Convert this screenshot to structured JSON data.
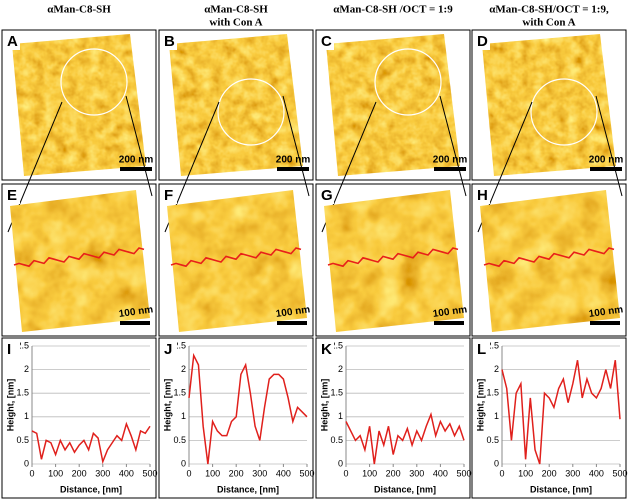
{
  "columns": [
    {
      "title": [
        "αMan-C8-SH"
      ],
      "top_label": "A",
      "top_scale": "200 nm",
      "zoom_label": "E",
      "zoom_scale": "100 nm"
    },
    {
      "title": [
        "αMan-C8-SH",
        "with Con A"
      ],
      "top_label": "B",
      "top_scale": "200 nm",
      "zoom_label": "F",
      "zoom_scale": "100 nm"
    },
    {
      "title": [
        "αMan-C8-SH /OCT = 1:9"
      ],
      "top_label": "C",
      "top_scale": "200 nm",
      "zoom_label": "G",
      "zoom_scale": "100 nm"
    },
    {
      "title": [
        "αMan-C8-SH/OCT = 1:9,",
        "with Con A"
      ],
      "top_label": "D",
      "top_scale": "200 nm",
      "zoom_label": "H",
      "zoom_scale": "100 nm"
    }
  ],
  "chart_data": [
    {
      "type": "line",
      "label": "I",
      "y_label": "Height, [nm]",
      "x_label": "Distance, [nm]",
      "color": "#e0201c",
      "xlim": [
        0,
        500
      ],
      "xticks": [
        0,
        100,
        200,
        300,
        400,
        500
      ],
      "ylim": [
        0,
        2.5
      ],
      "yticks": [
        0,
        0.5,
        1,
        1.5,
        2,
        2.5
      ],
      "grid": true,
      "x": [
        0,
        20,
        40,
        60,
        80,
        100,
        120,
        140,
        160,
        180,
        200,
        220,
        240,
        260,
        280,
        300,
        320,
        340,
        360,
        380,
        400,
        420,
        440,
        460,
        480,
        500
      ],
      "values": [
        0.7,
        0.65,
        0.1,
        0.5,
        0.45,
        0.2,
        0.5,
        0.3,
        0.45,
        0.25,
        0.4,
        0.5,
        0.3,
        0.65,
        0.55,
        0.05,
        0.3,
        0.45,
        0.6,
        0.5,
        0.85,
        0.6,
        0.3,
        0.7,
        0.65,
        0.8
      ]
    },
    {
      "type": "line",
      "label": "J",
      "y_label": "Height, [nm]",
      "x_label": "Distance, [nm]",
      "color": "#e0201c",
      "xlim": [
        0,
        500
      ],
      "xticks": [
        0,
        100,
        200,
        300,
        400,
        500
      ],
      "ylim": [
        0,
        2.5
      ],
      "yticks": [
        0,
        0.5,
        1,
        1.5,
        2,
        2.5
      ],
      "grid": true,
      "x": [
        0,
        20,
        40,
        60,
        80,
        100,
        120,
        140,
        160,
        180,
        200,
        220,
        240,
        260,
        280,
        300,
        320,
        340,
        360,
        380,
        400,
        420,
        440,
        460,
        480,
        500
      ],
      "values": [
        1.4,
        2.3,
        2.1,
        0.8,
        0.0,
        0.9,
        0.7,
        0.6,
        0.6,
        0.9,
        1.0,
        1.9,
        2.1,
        1.5,
        0.8,
        0.5,
        1.2,
        1.8,
        1.9,
        1.9,
        1.8,
        1.4,
        0.9,
        1.2,
        1.1,
        1.0
      ]
    },
    {
      "type": "line",
      "label": "K",
      "y_label": "Height, [nm]",
      "x_label": "Distance, [nm]",
      "color": "#e0201c",
      "xlim": [
        0,
        500
      ],
      "xticks": [
        0,
        100,
        200,
        300,
        400,
        500
      ],
      "ylim": [
        0,
        2.5
      ],
      "yticks": [
        0,
        0.5,
        1,
        1.5,
        2,
        2.5
      ],
      "grid": true,
      "x": [
        0,
        20,
        40,
        60,
        80,
        100,
        120,
        140,
        160,
        180,
        200,
        220,
        240,
        260,
        280,
        300,
        320,
        340,
        360,
        380,
        400,
        420,
        440,
        460,
        480,
        500
      ],
      "values": [
        0.9,
        0.7,
        0.5,
        0.6,
        0.3,
        0.8,
        0.0,
        0.7,
        0.4,
        0.8,
        0.2,
        0.6,
        0.5,
        0.75,
        0.4,
        0.7,
        0.5,
        0.8,
        1.05,
        0.6,
        0.9,
        0.7,
        0.85,
        0.6,
        0.8,
        0.5
      ]
    },
    {
      "type": "line",
      "label": "L",
      "y_label": "Height, [nm]",
      "x_label": "Distance, [nm]",
      "color": "#e0201c",
      "xlim": [
        0,
        500
      ],
      "xticks": [
        0,
        100,
        200,
        300,
        400,
        500
      ],
      "ylim": [
        0,
        2.5
      ],
      "yticks": [
        0,
        0.5,
        1,
        1.5,
        2,
        2.5
      ],
      "grid": true,
      "x": [
        0,
        20,
        40,
        60,
        80,
        100,
        120,
        140,
        160,
        180,
        200,
        220,
        240,
        260,
        280,
        300,
        320,
        340,
        360,
        380,
        400,
        420,
        440,
        460,
        480,
        500
      ],
      "values": [
        2.0,
        1.6,
        0.5,
        1.5,
        1.7,
        0.1,
        1.4,
        0.3,
        0.0,
        1.5,
        1.4,
        1.2,
        1.6,
        1.8,
        1.3,
        1.7,
        2.2,
        1.4,
        1.8,
        1.5,
        1.4,
        1.6,
        2.0,
        1.6,
        2.2,
        0.95
      ]
    }
  ]
}
